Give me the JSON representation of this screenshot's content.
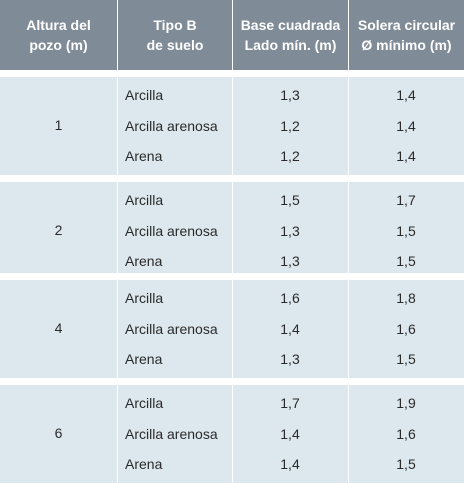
{
  "headers": [
    [
      "Altura del",
      "pozo (m)"
    ],
    [
      "Tipo B",
      "de suelo"
    ],
    [
      "Base cuadrada",
      "Lado mín. (m)"
    ],
    [
      "Solera circular",
      "Ø mínimo (m)"
    ]
  ],
  "groups": [
    {
      "height": "1",
      "rows": [
        {
          "soil": "Arcilla",
          "side": "1,3",
          "dia": "1,4"
        },
        {
          "soil": "Arcilla arenosa",
          "side": "1,2",
          "dia": "1,4"
        },
        {
          "soil": "Arena",
          "side": "1,2",
          "dia": "1,4"
        }
      ]
    },
    {
      "height": "2",
      "rows": [
        {
          "soil": "Arcilla",
          "side": "1,5",
          "dia": "1,7"
        },
        {
          "soil": "Arcilla arenosa",
          "side": "1,3",
          "dia": "1,5"
        },
        {
          "soil": "Arena",
          "side": "1,3",
          "dia": "1,5"
        }
      ]
    },
    {
      "height": "4",
      "rows": [
        {
          "soil": "Arcilla",
          "side": "1,6",
          "dia": "1,8"
        },
        {
          "soil": "Arcilla arenosa",
          "side": "1,4",
          "dia": "1,6"
        },
        {
          "soil": "Arena",
          "side": "1,3",
          "dia": "1,5"
        }
      ]
    },
    {
      "height": "6",
      "rows": [
        {
          "soil": "Arcilla",
          "side": "1,7",
          "dia": "1,9"
        },
        {
          "soil": "Arcilla arenosa",
          "side": "1,4",
          "dia": "1,6"
        },
        {
          "soil": "Arena",
          "side": "1,4",
          "dia": "1,5"
        }
      ]
    }
  ]
}
